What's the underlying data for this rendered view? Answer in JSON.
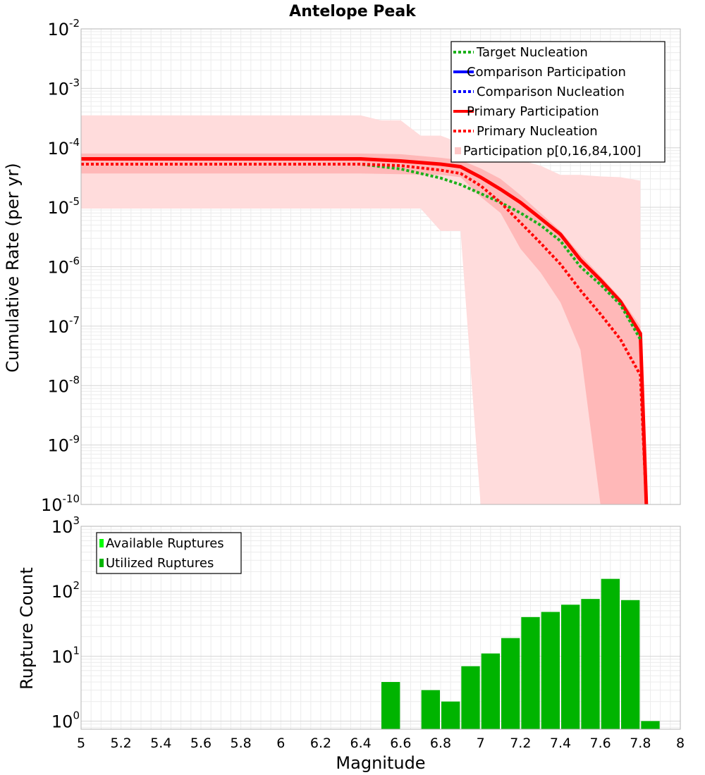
{
  "chart_data": [
    {
      "panel": "top",
      "type": "line",
      "title": "Antelope Peak",
      "xlabel": "Magnitude",
      "ylabel": "Cumulative Rate (per yr)",
      "xlim": [
        5,
        8
      ],
      "ylim": [
        1e-10,
        0.01
      ],
      "yscale": "log",
      "grid": true,
      "legend_position": "top-right",
      "legend_items": [
        {
          "label": "Target Nucleation",
          "style": "dotted",
          "color": "#1ab01a"
        },
        {
          "label": "Comparison Participation",
          "style": "solid",
          "color": "#0000ff"
        },
        {
          "label": "Comparison Nucleation",
          "style": "dotted",
          "color": "#0000ff"
        },
        {
          "label": "Primary Participation",
          "style": "solid",
          "color": "#ff0000"
        },
        {
          "label": "Primary Nucleation",
          "style": "dotted",
          "color": "#ff0000"
        },
        {
          "label": "Participation p[0,16,84,100]",
          "style": "band",
          "color": "#ffc8c8"
        }
      ],
      "x_ticks": [
        "5",
        "5.2",
        "5.4",
        "5.6",
        "5.8",
        "6",
        "6.2",
        "6.4",
        "6.6",
        "6.8",
        "7",
        "7.2",
        "7.4",
        "7.6",
        "7.8",
        "8"
      ],
      "y_ticks": [
        {
          "base": "10",
          "exp": "-2",
          "value": 0.01
        },
        {
          "base": "10",
          "exp": "-3",
          "value": 0.001
        },
        {
          "base": "10",
          "exp": "-4",
          "value": 0.0001
        },
        {
          "base": "10",
          "exp": "-5",
          "value": 1e-05
        },
        {
          "base": "10",
          "exp": "-6",
          "value": 1e-06
        },
        {
          "base": "10",
          "exp": "-7",
          "value": 1e-07
        },
        {
          "base": "10",
          "exp": "-8",
          "value": 1e-08
        },
        {
          "base": "10",
          "exp": "-9",
          "value": 1e-09
        },
        {
          "base": "10",
          "exp": "-10",
          "value": 1e-10
        }
      ],
      "bands": [
        {
          "name": "Participation p[0,16,84,100]",
          "role": "outer",
          "color": "#ffdcdc",
          "x": [
            5.0,
            6.4,
            6.5,
            6.6,
            6.7,
            6.8,
            6.9,
            7.0,
            7.1,
            7.2,
            7.3,
            7.4,
            7.5,
            7.6,
            7.7,
            7.8,
            7.8
          ],
          "upper": [
            0.00035,
            0.00035,
            0.00029,
            0.00029,
            0.00016,
            0.00016,
            0.00012,
            0.000105,
            8.5e-05,
            6.2e-05,
            5e-05,
            3.5e-05,
            3.5e-05,
            3.3e-05,
            3.2e-05,
            2.8e-05,
            1e-10
          ],
          "lower": [
            9.5e-06,
            9.5e-06,
            9.5e-06,
            9.5e-06,
            9.5e-06,
            4e-06,
            4e-06,
            1e-10,
            1e-10,
            1e-10,
            1e-10,
            1e-10,
            1e-10,
            1e-10,
            1e-10,
            1e-10,
            1e-10
          ]
        },
        {
          "name": "Participation p16-p84",
          "role": "inner",
          "color": "#ffb8b8",
          "x": [
            5.0,
            6.4,
            6.6,
            6.8,
            6.9,
            7.0,
            7.1,
            7.2,
            7.3,
            7.4,
            7.5,
            7.6,
            7.7,
            7.8,
            7.83
          ],
          "upper": [
            8e-05,
            8e-05,
            7.8e-05,
            6.8e-05,
            6.2e-05,
            4.5e-05,
            3e-05,
            1.6e-05,
            8e-06,
            4e-06,
            1.6e-06,
            7e-07,
            3e-07,
            1e-07,
            1e-10
          ],
          "lower": [
            3.7e-05,
            3.7e-05,
            3.6e-05,
            3.5e-05,
            3.2e-05,
            1.5e-05,
            8e-06,
            2e-06,
            8e-07,
            2.5e-07,
            4e-08,
            1e-10,
            1e-10,
            1e-10,
            1e-10
          ]
        }
      ],
      "series": [
        {
          "name": "Primary Participation",
          "color": "#ff0000",
          "style": "solid",
          "x": [
            5.0,
            6.4,
            6.6,
            6.8,
            6.9,
            7.0,
            7.1,
            7.2,
            7.3,
            7.4,
            7.5,
            7.6,
            7.7,
            7.8,
            7.83
          ],
          "values": [
            6.5e-05,
            6.5e-05,
            6e-05,
            5.3e-05,
            4.8e-05,
            3.2e-05,
            2e-05,
            1.2e-05,
            6.5e-06,
            3.5e-06,
            1.3e-06,
            6e-07,
            2.6e-07,
            7.5e-08,
            1e-10
          ]
        },
        {
          "name": "Target Nucleation",
          "color": "#1ab01a",
          "style": "dotted",
          "x": [
            5.0,
            6.4,
            6.6,
            6.8,
            6.9,
            7.0,
            7.1,
            7.2,
            7.3,
            7.4,
            7.5,
            7.6,
            7.7,
            7.8
          ],
          "values": [
            5.3e-05,
            5.3e-05,
            4.4e-05,
            3.1e-05,
            2.4e-05,
            1.7e-05,
            1.2e-05,
            8e-06,
            5e-06,
            2.7e-06,
            1e-06,
            5e-07,
            2.3e-07,
            6e-08
          ]
        },
        {
          "name": "Primary Nucleation",
          "color": "#ff0000",
          "style": "dotted",
          "x": [
            5.0,
            6.4,
            6.6,
            6.8,
            6.9,
            7.0,
            7.1,
            7.2,
            7.3,
            7.4,
            7.5,
            7.6,
            7.7,
            7.8,
            7.83
          ],
          "values": [
            5.3e-05,
            5.3e-05,
            5e-05,
            4.2e-05,
            3.7e-05,
            2.3e-05,
            1.2e-05,
            5.5e-06,
            2.5e-06,
            1.1e-06,
            4e-07,
            1.6e-07,
            6e-08,
            1.5e-08,
            1e-10
          ]
        }
      ]
    },
    {
      "panel": "bottom",
      "type": "bar",
      "xlabel": "Magnitude",
      "ylabel": "Rupture Count",
      "xlim": [
        5,
        8
      ],
      "ylim": [
        0.75,
        1000
      ],
      "yscale": "log",
      "grid": true,
      "legend_position": "top-left",
      "legend_items": [
        {
          "label": "Available Ruptures",
          "color": "#00ff00"
        },
        {
          "label": "Utilized Ruptures",
          "color": "#00b400"
        }
      ],
      "y_ticks": [
        {
          "base": "10",
          "exp": "3",
          "value": 1000
        },
        {
          "base": "10",
          "exp": "2",
          "value": 100
        },
        {
          "base": "10",
          "exp": "1",
          "value": 10
        },
        {
          "base": "10",
          "exp": "0",
          "value": 1
        }
      ],
      "bar_width": 0.1,
      "bars": [
        {
          "x": 6.55,
          "value": 4
        },
        {
          "x": 6.75,
          "value": 3
        },
        {
          "x": 6.85,
          "value": 2
        },
        {
          "x": 6.95,
          "value": 7
        },
        {
          "x": 7.05,
          "value": 11
        },
        {
          "x": 7.15,
          "value": 19
        },
        {
          "x": 7.25,
          "value": 40
        },
        {
          "x": 7.35,
          "value": 48
        },
        {
          "x": 7.45,
          "value": 62
        },
        {
          "x": 7.55,
          "value": 76
        },
        {
          "x": 7.65,
          "value": 155
        },
        {
          "x": 7.75,
          "value": 73
        },
        {
          "x": 7.85,
          "value": 1
        }
      ],
      "bar_color": "#00b400"
    }
  ]
}
